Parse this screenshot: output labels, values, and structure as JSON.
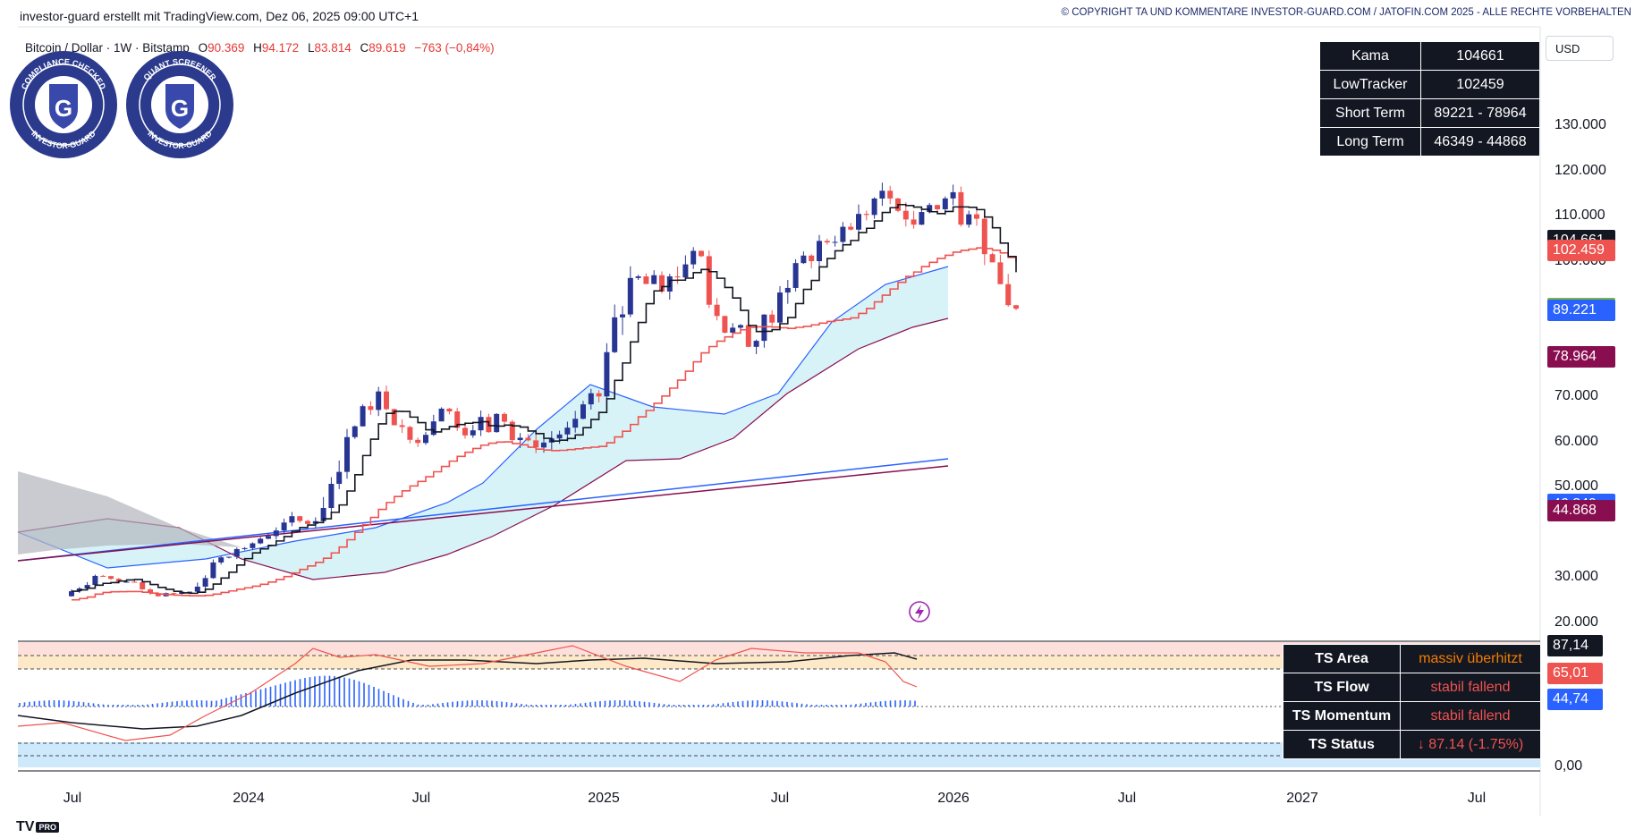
{
  "header": {
    "attribution": "investor-guard erstellt mit TradingView.com, Dez 06, 2025 09:00 UTC+1",
    "copyright": "© COPYRIGHT TA UND KOMMENTARE INVESTOR-GUARD.COM / JATOFIN.COM 2025 - ALLE RECHTE VORBEHALTEN"
  },
  "legend": {
    "symbol": "Bitcoin / Dollar · 1W · Bitstamp",
    "open_label": "O",
    "open": "90.369",
    "high_label": "H",
    "high": "94.172",
    "low_label": "L",
    "low": "83.814",
    "close_label": "C",
    "close": "89.619",
    "change": "−763 (−0,84%)"
  },
  "badges": {
    "left": {
      "top_text": "COMPLIANCE CHECKED",
      "bottom_text": "INVESTOR-GUARD",
      "letter": "G"
    },
    "right": {
      "top_text": "QUANT SCREENER",
      "bottom_text": "INVESTOR-GUARD",
      "letter": "G"
    }
  },
  "info_table": [
    {
      "label": "Kama",
      "value": "104661"
    },
    {
      "label": "LowTracker",
      "value": "102459"
    },
    {
      "label": "Short Term",
      "value": "89221 - 78964"
    },
    {
      "label": "Long Term",
      "value": "46349 - 44868"
    }
  ],
  "ts_table": [
    {
      "label": "TS Area",
      "value": "massiv überhitzt",
      "color": "#f57c00"
    },
    {
      "label": "TS Flow",
      "value": "stabil fallend",
      "color": "#ef5350"
    },
    {
      "label": "TS Momentum",
      "value": "stabil fallend",
      "color": "#ef5350"
    },
    {
      "label": "TS Status",
      "value": "↓ 87.14 (-1.75%)",
      "color": "#ef5350"
    }
  ],
  "currency": "USD",
  "price_axis": {
    "ticks": [
      "130.000",
      "120.000",
      "110.000",
      "100.000",
      "70.000",
      "60.000",
      "50.000",
      "30.000",
      "20.000"
    ],
    "tags": [
      {
        "value": "104.661",
        "color": "#131722"
      },
      {
        "value": "102.459",
        "color": "#ef5350"
      },
      {
        "value": "89.619",
        "color": "#7cb342"
      },
      {
        "value": "89.221",
        "color": "#2962ff"
      },
      {
        "value": "78.964",
        "color": "#880e4f"
      },
      {
        "value": "46.349",
        "color": "#2962ff"
      },
      {
        "value": "44.868",
        "color": "#880e4f"
      }
    ]
  },
  "indicator_axis": {
    "ticks": [
      "0,00"
    ],
    "tags": [
      {
        "value": "87,14",
        "color": "#131722"
      },
      {
        "value": "65,01",
        "color": "#ef5350"
      },
      {
        "value": "44,74",
        "color": "#2962ff"
      }
    ]
  },
  "time_axis": [
    "Jul",
    "2024",
    "Jul",
    "2025",
    "Jul",
    "2026",
    "Jul",
    "2027",
    "Jul"
  ],
  "footer_logo": "TV",
  "footer_logo_badge": "PRO",
  "colors": {
    "up": "#283593",
    "down": "#ef5350",
    "kama": "#131722",
    "lowtracker": "#ef5350",
    "band_fill": "#d7f3f8",
    "band_upper": "#2962ff",
    "band_lower": "#880e4f"
  },
  "chart_data": {
    "type": "candlestick",
    "timeframe": "1W",
    "source": "Bitstamp",
    "y_unit": "USD",
    "ylim": [
      10000,
      135000
    ],
    "candles_monthly_approx": [
      {
        "t": "2023-06",
        "o": 26000,
        "h": 31000,
        "l": 25000,
        "c": 30500
      },
      {
        "t": "2023-07",
        "o": 30500,
        "h": 31800,
        "l": 29000,
        "c": 29200
      },
      {
        "t": "2023-08",
        "o": 29200,
        "h": 30000,
        "l": 25500,
        "c": 26000
      },
      {
        "t": "2023-09",
        "o": 26000,
        "h": 27500,
        "l": 24900,
        "c": 27000
      },
      {
        "t": "2023-10",
        "o": 27000,
        "h": 35000,
        "l": 26500,
        "c": 34600
      },
      {
        "t": "2023-11",
        "o": 34600,
        "h": 38500,
        "l": 34000,
        "c": 37700
      },
      {
        "t": "2023-12",
        "o": 37700,
        "h": 45000,
        "l": 37500,
        "c": 42300
      },
      {
        "t": "2024-01",
        "o": 42300,
        "h": 49000,
        "l": 38500,
        "c": 42600
      },
      {
        "t": "2024-02",
        "o": 42600,
        "h": 63000,
        "l": 41800,
        "c": 61200
      },
      {
        "t": "2024-03",
        "o": 61200,
        "h": 73700,
        "l": 60800,
        "c": 71300
      },
      {
        "t": "2024-04",
        "o": 71300,
        "h": 72700,
        "l": 59600,
        "c": 60600
      },
      {
        "t": "2024-05",
        "o": 60600,
        "h": 71900,
        "l": 56500,
        "c": 67500
      },
      {
        "t": "2024-06",
        "o": 67500,
        "h": 71900,
        "l": 58400,
        "c": 62700
      },
      {
        "t": "2024-07",
        "o": 62700,
        "h": 70000,
        "l": 53500,
        "c": 64600
      },
      {
        "t": "2024-08",
        "o": 64600,
        "h": 65000,
        "l": 49000,
        "c": 58900
      },
      {
        "t": "2024-09",
        "o": 58900,
        "h": 66500,
        "l": 52600,
        "c": 63300
      },
      {
        "t": "2024-10",
        "o": 63300,
        "h": 73600,
        "l": 58900,
        "c": 70200
      },
      {
        "t": "2024-11",
        "o": 70200,
        "h": 99600,
        "l": 66800,
        "c": 96400
      },
      {
        "t": "2024-12",
        "o": 96400,
        "h": 108300,
        "l": 90500,
        "c": 93400
      },
      {
        "t": "2025-01",
        "o": 93400,
        "h": 109300,
        "l": 89200,
        "c": 102400
      },
      {
        "t": "2025-02",
        "o": 102400,
        "h": 102500,
        "l": 78200,
        "c": 84300
      },
      {
        "t": "2025-03",
        "o": 84300,
        "h": 95000,
        "l": 76600,
        "c": 82500
      },
      {
        "t": "2025-04",
        "o": 82500,
        "h": 97900,
        "l": 74400,
        "c": 94200
      },
      {
        "t": "2025-05",
        "o": 94200,
        "h": 111900,
        "l": 93400,
        "c": 104600
      },
      {
        "t": "2025-06",
        "o": 104600,
        "h": 110500,
        "l": 98200,
        "c": 107100
      },
      {
        "t": "2025-07",
        "o": 107100,
        "h": 123200,
        "l": 105100,
        "c": 115700
      },
      {
        "t": "2025-08",
        "o": 115700,
        "h": 124400,
        "l": 107300,
        "c": 108200
      },
      {
        "t": "2025-09",
        "o": 108200,
        "h": 117900,
        "l": 107300,
        "c": 114000
      },
      {
        "t": "2025-10",
        "o": 114000,
        "h": 126200,
        "l": 103500,
        "c": 109500
      },
      {
        "t": "2025-11",
        "o": 109500,
        "h": 111200,
        "l": 80600,
        "c": 90400
      },
      {
        "t": "2025-12",
        "o": 90369,
        "h": 94172,
        "l": 83814,
        "c": 89619
      }
    ],
    "series": [
      {
        "name": "Kama",
        "last": 104661
      },
      {
        "name": "LowTracker",
        "last": 102459
      },
      {
        "name": "Short Term",
        "upper_last": 89221,
        "lower_last": 78964
      },
      {
        "name": "Long Term",
        "upper_last": 46349,
        "lower_last": 44868
      }
    ],
    "indicator": {
      "series": [
        {
          "name": "TS Area",
          "last": 87.14
        },
        {
          "name": "TS Flow",
          "last": 65.01
        },
        {
          "name": "TS Momentum",
          "last": 44.74
        }
      ]
    },
    "x_tick_labels": [
      "Jul",
      "2024",
      "Jul",
      "2025",
      "Jul",
      "2026",
      "Jul",
      "2027",
      "Jul"
    ]
  }
}
